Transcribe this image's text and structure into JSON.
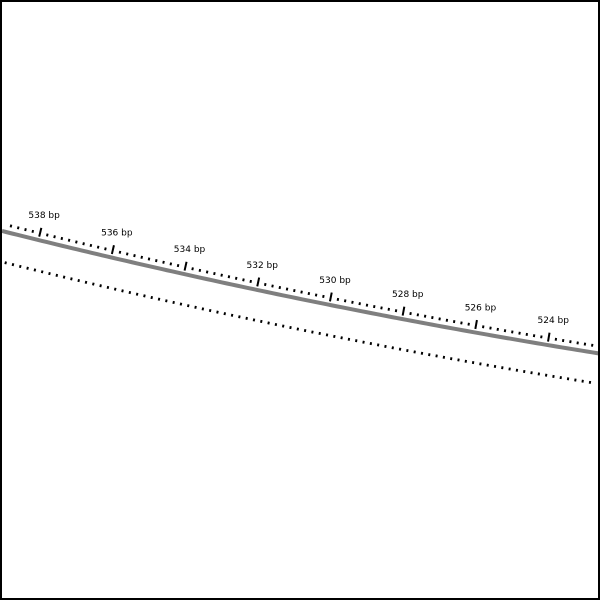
{
  "colors": {
    "background": "#ffffff",
    "frame": "#000000",
    "strand": "#7f7f7f",
    "ticks": "#000000",
    "label": "#000000"
  },
  "sequence": {
    "unit": "bp",
    "start_bp": 539,
    "end_bp": 522.5,
    "direction": "decreasing-left-to-right"
  },
  "ruler": {
    "labeled_positions": [
      538,
      536,
      534,
      532,
      530,
      528,
      526,
      524
    ],
    "labels": [
      {
        "text": "538 bp"
      },
      {
        "text": "536 bp"
      },
      {
        "text": "534 bp"
      },
      {
        "text": "532 bp"
      },
      {
        "text": "530 bp"
      },
      {
        "text": "528 bp"
      },
      {
        "text": "526 bp"
      },
      {
        "text": "524 bp"
      }
    ]
  }
}
